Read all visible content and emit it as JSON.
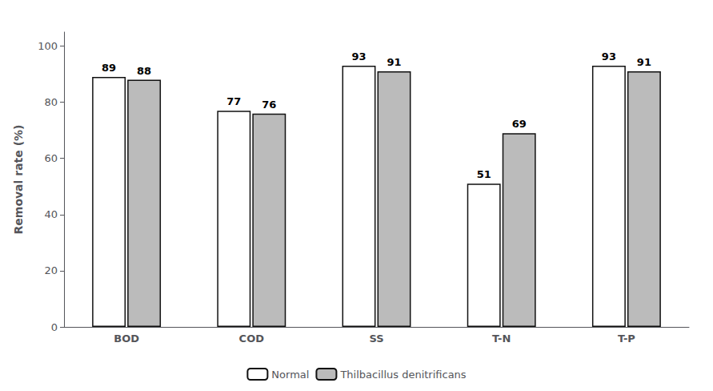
{
  "chart_data": {
    "type": "bar",
    "categories": [
      "BOD",
      "COD",
      "SS",
      "T-N",
      "T-P"
    ],
    "series": [
      {
        "name": "Normal",
        "color": "#FFFFFF",
        "values": [
          89,
          77,
          93,
          51,
          93
        ]
      },
      {
        "name": "Thilbacillus denitrificans",
        "color": "#BBBBBB",
        "values": [
          88,
          76,
          91,
          69,
          91
        ]
      }
    ],
    "ylabel": "Removal rate (%)",
    "ylim": [
      0,
      105
    ],
    "yticks": [
      0,
      20,
      40,
      60,
      80,
      100
    ],
    "grid": false,
    "legend": "bottom",
    "data_labels": true
  }
}
